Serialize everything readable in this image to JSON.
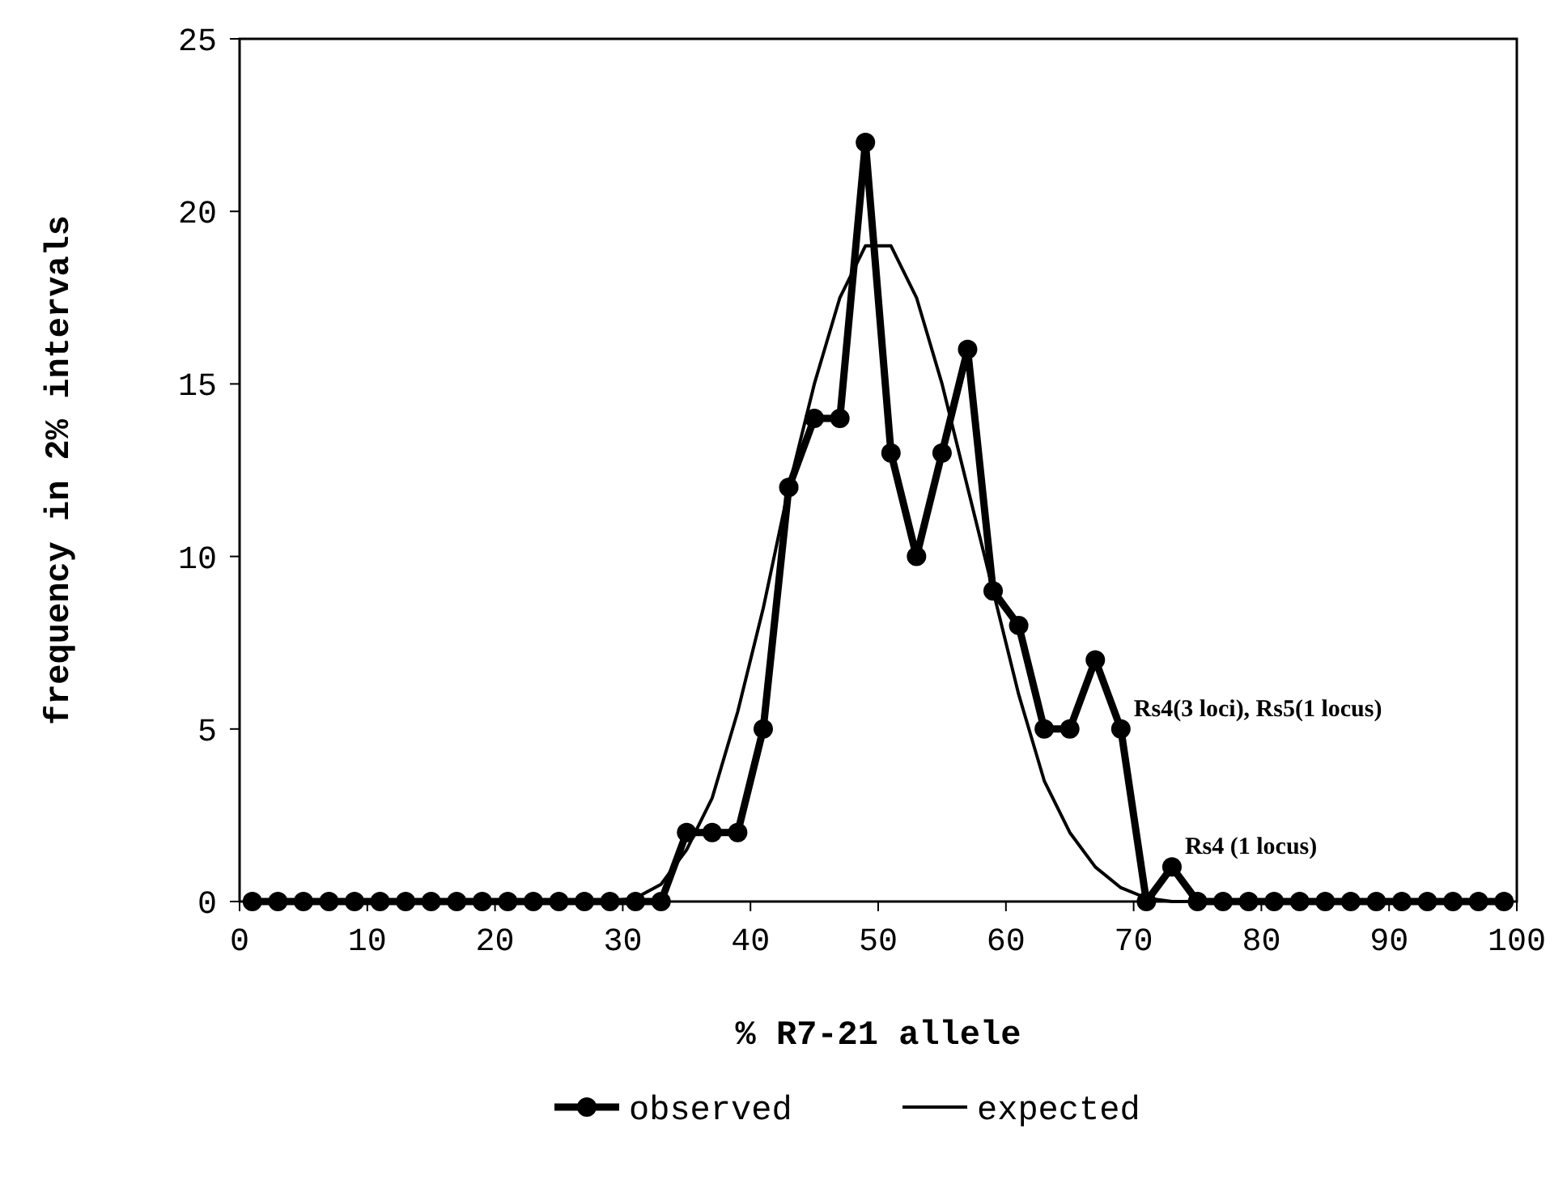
{
  "chart_data": {
    "type": "line",
    "xlabel": "% R7-21 allele",
    "ylabel": "frequency in 2% intervals",
    "x": [
      1,
      3,
      5,
      7,
      9,
      11,
      13,
      15,
      17,
      19,
      21,
      23,
      25,
      27,
      29,
      31,
      33,
      35,
      37,
      39,
      41,
      43,
      45,
      47,
      49,
      51,
      53,
      55,
      57,
      59,
      61,
      63,
      65,
      67,
      69,
      71,
      73,
      75,
      77,
      79,
      81,
      83,
      85,
      87,
      89,
      91,
      93,
      95,
      97,
      99
    ],
    "series": [
      {
        "name": "observed",
        "color": "#000000",
        "marker": "circle",
        "values": [
          0,
          0,
          0,
          0,
          0,
          0,
          0,
          0,
          0,
          0,
          0,
          0,
          0,
          0,
          0,
          0,
          0,
          2,
          2,
          2,
          5,
          12,
          14,
          14,
          22,
          13,
          10,
          13,
          16,
          9,
          8,
          5,
          5,
          7,
          5,
          0,
          1,
          0,
          0,
          0,
          0,
          0,
          0,
          0,
          0,
          0,
          0,
          0,
          0,
          0
        ]
      },
      {
        "name": "expected",
        "color": "#000000",
        "marker": "none",
        "values": [
          0,
          0,
          0,
          0,
          0,
          0,
          0,
          0,
          0,
          0,
          0,
          0,
          0,
          0,
          0,
          0.1,
          0.5,
          1.5,
          3,
          5.5,
          8.5,
          12,
          15,
          17.5,
          19,
          19,
          17.5,
          15,
          12,
          9,
          6,
          3.5,
          2,
          1,
          0.4,
          0.1,
          0,
          0,
          0,
          0,
          0,
          0,
          0,
          0,
          0,
          0,
          0,
          0,
          0,
          0
        ]
      }
    ],
    "xlim": [
      0,
      100
    ],
    "xticks": [
      0,
      10,
      20,
      30,
      40,
      50,
      60,
      70,
      80,
      90,
      100
    ],
    "ylim": [
      0,
      25
    ],
    "yticks": [
      0,
      5,
      10,
      15,
      20,
      25
    ],
    "grid": false,
    "legend": "bottom",
    "annotations": [
      {
        "text": "Rs4(3 loci), Rs5(1 locus)",
        "x": 69,
        "y": 5
      },
      {
        "text": "Rs4 (1 locus)",
        "x": 73,
        "y": 1
      }
    ]
  }
}
